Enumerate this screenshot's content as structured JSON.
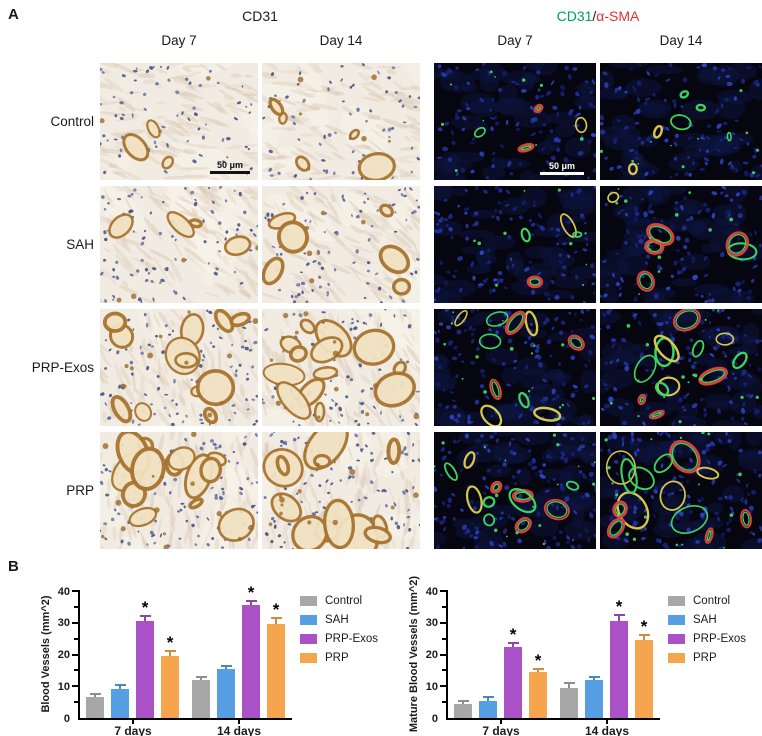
{
  "panel_a": {
    "label": "A",
    "ihc_stain_title": "CD31",
    "if_stain_title_parts": {
      "cd31": "CD31",
      "separator": "/",
      "asma": "α-SMA"
    },
    "column_labels": {
      "ihc_day7": "Day 7",
      "ihc_day14": "Day 14",
      "if_day7": "Day 7",
      "if_day14": "Day 14"
    },
    "row_labels": [
      "Control",
      "SAH",
      "PRP-Exos",
      "PRP"
    ],
    "scale_bar": {
      "ihc": "50 μm",
      "if": "50 μm"
    }
  },
  "panel_b": {
    "label": "B"
  },
  "chart_data": [
    {
      "type": "bar",
      "title": "",
      "ylabel": "Blood Vessels (mm^2)",
      "xlabel": "",
      "categories": [
        "7 days",
        "14 days"
      ],
      "ylim": [
        0,
        40
      ],
      "yticks": [
        0,
        10,
        20,
        30,
        40
      ],
      "minor_ticks": [
        5,
        15,
        25,
        35
      ],
      "grid": false,
      "legend_position": "right",
      "series": [
        {
          "name": "Control",
          "color": "#a7a7a7",
          "values": [
            6.5,
            12
          ],
          "errors": [
            1.0,
            0.8
          ],
          "sig": [
            false,
            false
          ]
        },
        {
          "name": "SAH",
          "color": "#569fe3",
          "values": [
            9,
            15.5
          ],
          "errors": [
            1.3,
            1.0
          ],
          "sig": [
            false,
            false
          ]
        },
        {
          "name": "PRP-Exos",
          "color": "#ab51c8",
          "values": [
            30.5,
            35.5
          ],
          "errors": [
            1.5,
            1.5
          ],
          "sig": [
            true,
            true
          ]
        },
        {
          "name": "PRP",
          "color": "#f6a44d",
          "values": [
            19.5,
            29.5
          ],
          "errors": [
            1.5,
            2.0
          ],
          "sig": [
            true,
            true
          ]
        }
      ],
      "sig_marker": "*"
    },
    {
      "type": "bar",
      "title": "",
      "ylabel": "Mature Blood Vessels (mm^2)",
      "xlabel": "",
      "categories": [
        "7 days",
        "14 days"
      ],
      "ylim": [
        0,
        40
      ],
      "yticks": [
        0,
        10,
        20,
        30,
        40
      ],
      "minor_ticks": [
        5,
        15,
        25,
        35
      ],
      "grid": false,
      "legend_position": "right",
      "series": [
        {
          "name": "Control",
          "color": "#a7a7a7",
          "values": [
            4.5,
            9.5
          ],
          "errors": [
            0.8,
            1.5
          ],
          "sig": [
            false,
            false
          ]
        },
        {
          "name": "SAH",
          "color": "#569fe3",
          "values": [
            5.5,
            12
          ],
          "errors": [
            1.2,
            1.0
          ],
          "sig": [
            false,
            false
          ]
        },
        {
          "name": "PRP-Exos",
          "color": "#ab51c8",
          "values": [
            22.5,
            30.5
          ],
          "errors": [
            1.0,
            2.0
          ],
          "sig": [
            true,
            true
          ]
        },
        {
          "name": "PRP",
          "color": "#f6a44d",
          "values": [
            14.5,
            24.5
          ],
          "errors": [
            1.0,
            1.5
          ],
          "sig": [
            true,
            true
          ]
        }
      ],
      "sig_marker": "*"
    }
  ],
  "colors": {
    "cd31_green": "#00a05a",
    "asma_red": "#e03232",
    "series": {
      "Control": "#a7a7a7",
      "SAH": "#569fe3",
      "PRP-Exos": "#ab51c8",
      "PRP": "#f6a44d"
    }
  }
}
